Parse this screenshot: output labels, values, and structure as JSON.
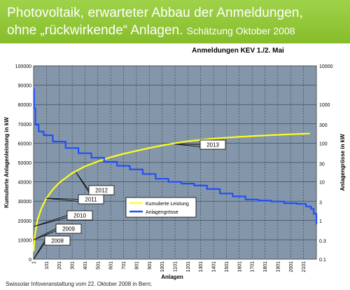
{
  "header": {
    "title_line1": "Photovoltaik, erwarteter Abbau der Anmeldungen,",
    "title_line2": "ohne „rückwirkende“ Anlagen.",
    "title_line2_suffix": "Schätzung Oktober 2008",
    "bg_color": "#8cc63f"
  },
  "footer": {
    "text": "Swissolar Infoveranstaltung vom 22. Oktober 2008 in Bern;"
  },
  "chart_data": {
    "type": "line",
    "title": "Anmeldungen KEV 1./2. Mai",
    "xlabel": "Anlagen",
    "ylabel": "Kumulierte Anlagenleistung in kW",
    "y2label": "Anlagengrösse in kW",
    "x_ticks": [
      1,
      101,
      201,
      301,
      401,
      501,
      601,
      701,
      801,
      901,
      1001,
      1101,
      1201,
      1301,
      1401,
      1501,
      1601,
      1701,
      1801,
      1901,
      2001,
      2101
    ],
    "xlim": [
      1,
      2201
    ],
    "ylim": [
      0,
      100000
    ],
    "y_ticks": [
      0,
      10000,
      20000,
      30000,
      40000,
      50000,
      60000,
      70000,
      80000,
      90000,
      100000
    ],
    "y2_scale": "log",
    "y2lim": [
      0.1,
      10000
    ],
    "y2_ticks": [
      0.1,
      0.3,
      1,
      3,
      10,
      30,
      100,
      300,
      1000,
      10000
    ],
    "y2_tick_labels": [
      "0.1",
      "0.3",
      "1",
      "3",
      "10",
      "30",
      "100",
      "300",
      "1000",
      "10000"
    ],
    "grid": true,
    "plot_bg": "#8496aa",
    "legend_position": "bottom-center",
    "series": [
      {
        "name": "Kumulierte Leistung",
        "axis": "left",
        "color": "#ffff1a",
        "x": [
          1,
          10,
          30,
          60,
          100,
          150,
          200,
          300,
          400,
          500,
          600,
          700,
          800,
          900,
          1000,
          1100,
          1200,
          1400,
          1600,
          1800,
          2000,
          2150
        ],
        "y": [
          4000,
          12000,
          20000,
          26000,
          31500,
          36000,
          39500,
          44500,
          48000,
          50500,
          52700,
          54500,
          56000,
          57500,
          58800,
          60000,
          61000,
          62400,
          63300,
          64000,
          64600,
          65000
        ]
      },
      {
        "name": "Anlagengrösse",
        "axis": "right",
        "color": "#1f4fff",
        "x": [
          1,
          5,
          15,
          40,
          80,
          150,
          250,
          350,
          450,
          550,
          650,
          750,
          850,
          950,
          1050,
          1150,
          1250,
          1350,
          1450,
          1550,
          1650,
          1750,
          1850,
          1950,
          2050,
          2120,
          2160,
          2180,
          2201
        ],
        "y": [
          2500,
          800,
          300,
          200,
          160,
          110,
          75,
          55,
          42,
          33,
          26,
          21,
          16,
          12,
          10,
          9,
          8,
          6.5,
          5,
          4.2,
          3.5,
          3.3,
          3.1,
          2.8,
          2.7,
          2.3,
          2,
          1.5,
          0.8
        ]
      }
    ],
    "annotations": [
      {
        "text": "2008",
        "x": 1,
        "y": 0
      },
      {
        "text": "2009",
        "x": 1,
        "y": 10000
      },
      {
        "text": "2010",
        "x": 5,
        "y": 17000
      },
      {
        "text": "2011",
        "x": 100,
        "y": 31500
      },
      {
        "text": "2012",
        "x": 330,
        "y": 45000
      },
      {
        "text": "2013",
        "x": 1100,
        "y": 59500
      }
    ]
  }
}
